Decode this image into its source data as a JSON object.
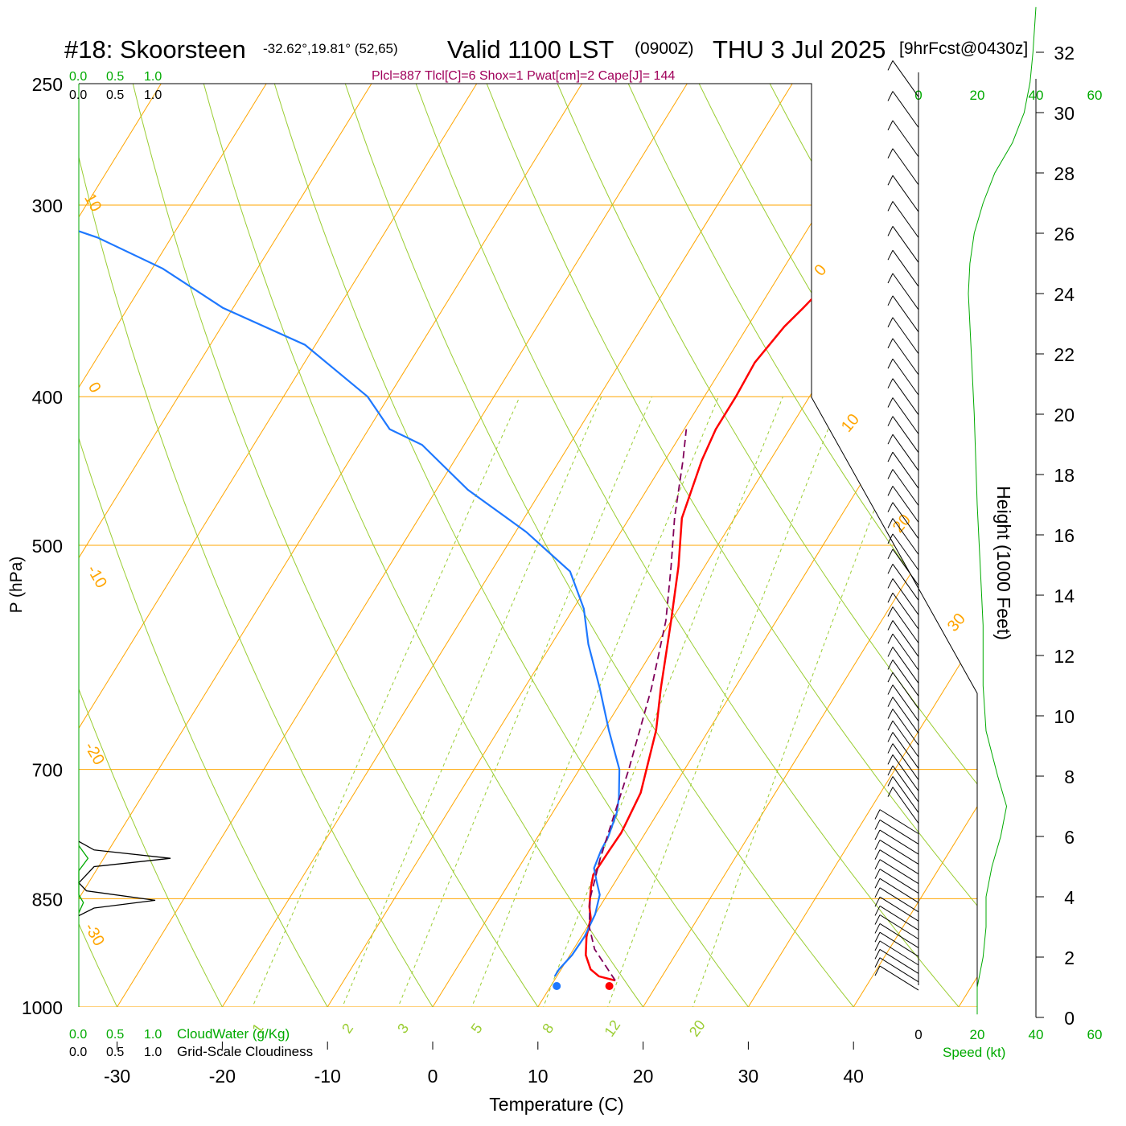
{
  "header": {
    "station": "#18: Skoorsteen",
    "coords": "-32.62°,19.81° (52,65)",
    "valid": "Valid 1100 LST",
    "zulu": "(0900Z)",
    "date": "THU 3 Jul 2025",
    "forecast": "[9hrFcst@0430z]",
    "indices": "Plcl=887 Tlcl[C]=6 Shox=1 Pwat[cm]=2 Cape[J]= 144"
  },
  "colors": {
    "temperature": "#ff0000",
    "dewpoint": "#1e78ff",
    "parcel": "#80005a",
    "isotherm": "#ffa500",
    "dry_adiabat": "#9acd32",
    "mixing_ratio": "#9acd32",
    "cloud_water": "#00aa00",
    "wind_speed": "#00aa00",
    "title": "#000000",
    "indices": "#a0005a"
  },
  "chart_data": [
    {
      "type": "line",
      "name": "skew-t",
      "xlabel": "Temperature (C)",
      "ylabel": "P (hPa)",
      "x_ticks": [
        "-30",
        "-20",
        "-10",
        "0",
        "10",
        "20",
        "30",
        "40"
      ],
      "y_ticks": [
        "250",
        "300",
        "400",
        "500",
        "700",
        "850",
        "1000"
      ],
      "xlim": [
        -33,
        36
      ],
      "ylim": [
        1000,
        250
      ],
      "y_scale": "log",
      "skew_degrees_per_decade": 90,
      "series": [
        {
          "role": "temperature",
          "points": [
            [
              15.8,
              961
            ],
            [
              14.0,
              955
            ],
            [
              12.8,
              945
            ],
            [
              11.5,
              925
            ],
            [
              10.5,
              900
            ],
            [
              9.8,
              875
            ],
            [
              9.0,
              860
            ],
            [
              8.0,
              835
            ],
            [
              7.5,
              820
            ],
            [
              7.6,
              790
            ],
            [
              7.7,
              770
            ],
            [
              7.6,
              760
            ],
            [
              7.2,
              725
            ],
            [
              5.0,
              660
            ],
            [
              3.0,
              620
            ],
            [
              0.0,
              560
            ],
            [
              -2.5,
              516
            ],
            [
              -5.0,
              480
            ],
            [
              -6.5,
              440
            ],
            [
              -7.0,
              420
            ],
            [
              -7.0,
              400
            ],
            [
              -7.2,
              380
            ],
            [
              -6.5,
              360
            ],
            [
              -5.8,
              350
            ],
            [
              -4.5,
              330
            ],
            [
              -3.5,
              310
            ],
            [
              -2.5,
              300
            ],
            [
              -1.0,
              285
            ],
            [
              0.8,
              270
            ],
            [
              1.8,
              265
            ],
            [
              2.5,
              258
            ]
          ]
        },
        {
          "role": "dewpoint",
          "points": [
            [
              9.8,
              955
            ],
            [
              9.8,
              945
            ],
            [
              10.2,
              925
            ],
            [
              10.3,
              900
            ],
            [
              10.0,
              870
            ],
            [
              9.3,
              845
            ],
            [
              8.2,
              828
            ],
            [
              7.2,
              812
            ],
            [
              6.8,
              790
            ],
            [
              6.7,
              775
            ],
            [
              6.1,
              747
            ],
            [
              5.4,
              730
            ],
            [
              3.8,
              700
            ],
            [
              0.5,
              660
            ],
            [
              -2.8,
              620
            ],
            [
              -6.5,
              580
            ],
            [
              -9.0,
              550
            ],
            [
              -12.5,
              520
            ],
            [
              -19.0,
              490
            ],
            [
              -27.0,
              460
            ],
            [
              -34.0,
              430
            ],
            [
              -38.0,
              420
            ],
            [
              -42.0,
              400
            ],
            [
              -51.0,
              370
            ],
            [
              -61.0,
              350
            ],
            [
              -69.0,
              330
            ],
            [
              -77.0,
              315
            ],
            [
              -88.0,
              300
            ],
            [
              -96.0,
              280
            ],
            [
              -103.0,
              262
            ],
            [
              -107.0,
              257
            ]
          ]
        },
        {
          "role": "parcel",
          "points": [
            [
              15.8,
              961
            ],
            [
              12.0,
              917
            ],
            [
              10.2,
              887
            ],
            [
              8.6,
              850
            ],
            [
              7.2,
              800
            ],
            [
              4.7,
              700
            ],
            [
              2.1,
              620
            ],
            [
              -0.5,
              560
            ],
            [
              -3.2,
              516
            ],
            [
              -5.7,
              480
            ],
            [
              -8.3,
              440
            ],
            [
              -9.8,
              420
            ]
          ]
        }
      ],
      "markers": [
        {
          "role": "temperature",
          "t": 15.8,
          "p": 975
        },
        {
          "role": "dewpoint",
          "t": 10.8,
          "p": 975
        }
      ],
      "dry_adiabat_labels": [
        "10",
        "0",
        "-10",
        "-20",
        "-30",
        "0",
        "10",
        "20",
        "30"
      ],
      "mixing_ratio_labels": [
        "1",
        "2",
        "3",
        "5",
        "8",
        "12",
        "20"
      ]
    },
    {
      "type": "line",
      "name": "cloud-water-and-cloudiness",
      "scale_labels_green": [
        "0.0",
        "0.5",
        "1.0"
      ],
      "scale_labels_black": [
        "0.0",
        "0.5",
        "1.0"
      ],
      "legend_cloudwater": "CloudWater (g/Kg)",
      "legend_cloudiness": "Grid-Scale Cloudiness",
      "cloudiness_points": [
        [
          0.0,
          780
        ],
        [
          0.1,
          790
        ],
        [
          0.6,
          800
        ],
        [
          0.1,
          810
        ],
        [
          0.0,
          830
        ],
        [
          0.05,
          840
        ],
        [
          0.5,
          852
        ],
        [
          0.1,
          862
        ],
        [
          0.0,
          872
        ]
      ],
      "cloudwater_points": [
        [
          0.0,
          785
        ],
        [
          0.06,
          800
        ],
        [
          0.0,
          815
        ],
        [
          0.0,
          845
        ],
        [
          0.03,
          855
        ],
        [
          0.0,
          868
        ]
      ]
    },
    {
      "type": "line",
      "name": "wind-speed-profile",
      "xlabel": "Speed (kt)",
      "x_ticks": [
        "0",
        "20",
        "40",
        "60"
      ],
      "xlim": [
        0,
        60
      ],
      "points": [
        [
          20,
          0.1
        ],
        [
          20,
          1.0
        ],
        [
          22,
          2.0
        ],
        [
          23,
          3.0
        ],
        [
          23,
          4.0
        ],
        [
          25,
          5.0
        ],
        [
          28,
          6.0
        ],
        [
          30,
          7.0
        ],
        [
          27,
          8.0
        ],
        [
          23,
          9.5
        ],
        [
          22,
          11
        ],
        [
          22,
          13
        ],
        [
          21,
          15
        ],
        [
          20,
          17
        ],
        [
          19,
          20
        ],
        [
          18,
          22
        ],
        [
          17,
          24
        ],
        [
          17.5,
          25
        ],
        [
          19,
          26
        ],
        [
          22,
          27
        ],
        [
          26,
          28
        ],
        [
          32,
          29
        ],
        [
          36,
          30
        ],
        [
          38,
          31
        ],
        [
          39,
          32
        ],
        [
          40,
          33.5
        ]
      ]
    },
    {
      "type": "line",
      "name": "height-axis",
      "ylabel": "Height (1000 Feet)",
      "y_ticks": [
        "0",
        "2",
        "4",
        "6",
        "8",
        "10",
        "12",
        "14",
        "16",
        "18",
        "20",
        "22",
        "24",
        "26",
        "28",
        "30",
        "32"
      ]
    }
  ]
}
